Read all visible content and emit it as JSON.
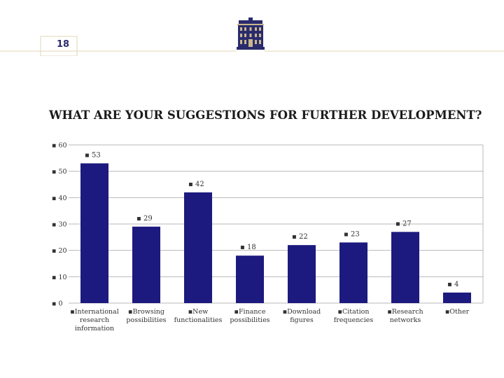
{
  "header": {
    "slide_number": "18"
  },
  "logo": {
    "icon": "building-logo-icon",
    "color": "#2a2b6d"
  },
  "chart_data": {
    "type": "bar",
    "title": "WHAT ARE YOUR SUGGESTIONS FOR FURTHER DEVELOPMENT?",
    "categories": [
      [
        "International",
        "research",
        "information"
      ],
      [
        "Browsing",
        "possibilities"
      ],
      [
        "New",
        "functionalities"
      ],
      [
        "Finance",
        "possibilities"
      ],
      [
        "Download",
        "figures"
      ],
      [
        "Citation",
        "frequencies"
      ],
      [
        "Research",
        "networks"
      ],
      [
        "Other"
      ]
    ],
    "values": [
      53,
      29,
      42,
      18,
      22,
      23,
      27,
      4
    ],
    "data_labels": [
      "53",
      "29",
      "42",
      "18",
      "22",
      "23",
      "27",
      "4"
    ],
    "y_ticks": [
      0,
      10,
      20,
      30,
      40,
      50,
      60
    ],
    "y_tick_labels": [
      "0",
      "10",
      "20",
      "30",
      "40",
      "50",
      "60"
    ],
    "ylim": [
      0,
      60
    ],
    "grid": true,
    "legend": "none",
    "bar_color": "#1c1a7e",
    "grid_color": "#b8b8b8",
    "marker": "▪"
  }
}
